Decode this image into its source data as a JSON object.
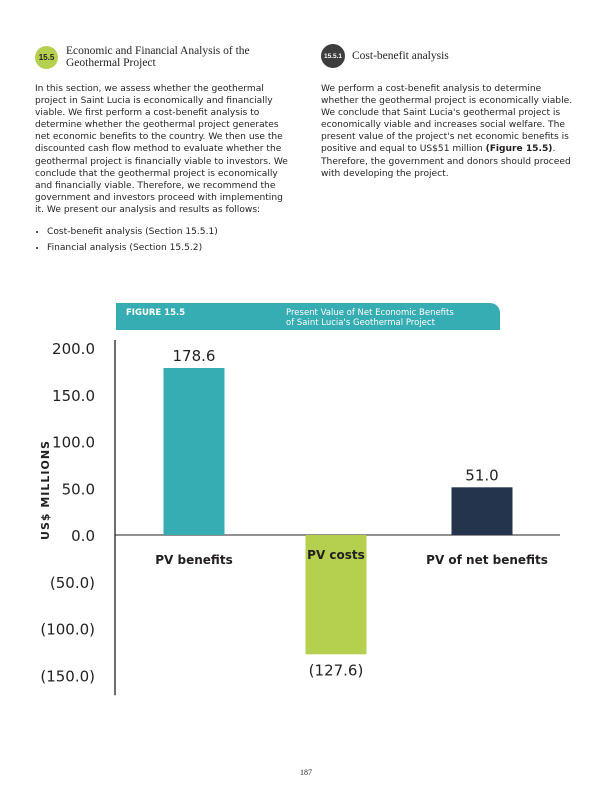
{
  "left": {
    "badge": "15.5",
    "heading_line1": "Economic and Financial Analysis of the",
    "heading_line2": "Geothermal Project",
    "body": "In this section, we assess whether the geothermal project in Saint Lucia is economically and financially viable. We first perform a cost-benefit analysis to determine whether the geothermal project generates net economic benefits to the country. We then use the discounted cash flow method to evaluate whether the geothermal project is financially viable to investors. We conclude that the geothermal project is economically and financially viable. Therefore, we recommend the government and investors proceed with implementing it. We present our analysis and results as follows:",
    "bullets": [
      "Cost-benefit analysis (Section 15.5.1)",
      "Financial analysis (Section 15.5.2)"
    ]
  },
  "right": {
    "badge": "15.5.1",
    "heading": "Cost-benefit analysis",
    "body_before": "We perform a cost-benefit analysis to determine whether the geothermal project is economically viable. We conclude that Saint Lucia's geothermal project is economically viable and increases social welfare. The present value of the project's net economic benefits is positive and equal to US$51 million ",
    "body_bold": "(Figure 15.5)",
    "body_after": ". Therefore, the government and donors should proceed with developing the project."
  },
  "figure": {
    "label": "FIGURE 15.5",
    "title_line1": "Present Value of Net Economic Benefits",
    "title_line2": "of Saint Lucia's Geothermal Project",
    "header_color": "#36adb2"
  },
  "chart_data": {
    "type": "bar",
    "categories": [
      "PV benefits",
      "PV costs",
      "PV of net benefits"
    ],
    "values": [
      178.6,
      -127.6,
      51.0
    ],
    "value_labels": [
      "178.6",
      "(127.6)",
      "51.0"
    ],
    "colors": [
      "#36adb2",
      "#b5cf4e",
      "#24344d"
    ],
    "ylabel": "US$ MILLIONS",
    "ylim": [
      -150,
      200
    ],
    "yticks": [
      200,
      150,
      100,
      50,
      0,
      -50,
      -100,
      -150
    ],
    "ytick_labels": [
      "200.0",
      "150.0",
      "100.0",
      "50.0",
      "0.0",
      "(50.0)",
      "(100.0)",
      "(150.0)"
    ],
    "grid": false
  },
  "page_number": "187",
  "colors": {
    "badge_left": "#b5cf4e",
    "badge_right": "#3d3d3d"
  }
}
